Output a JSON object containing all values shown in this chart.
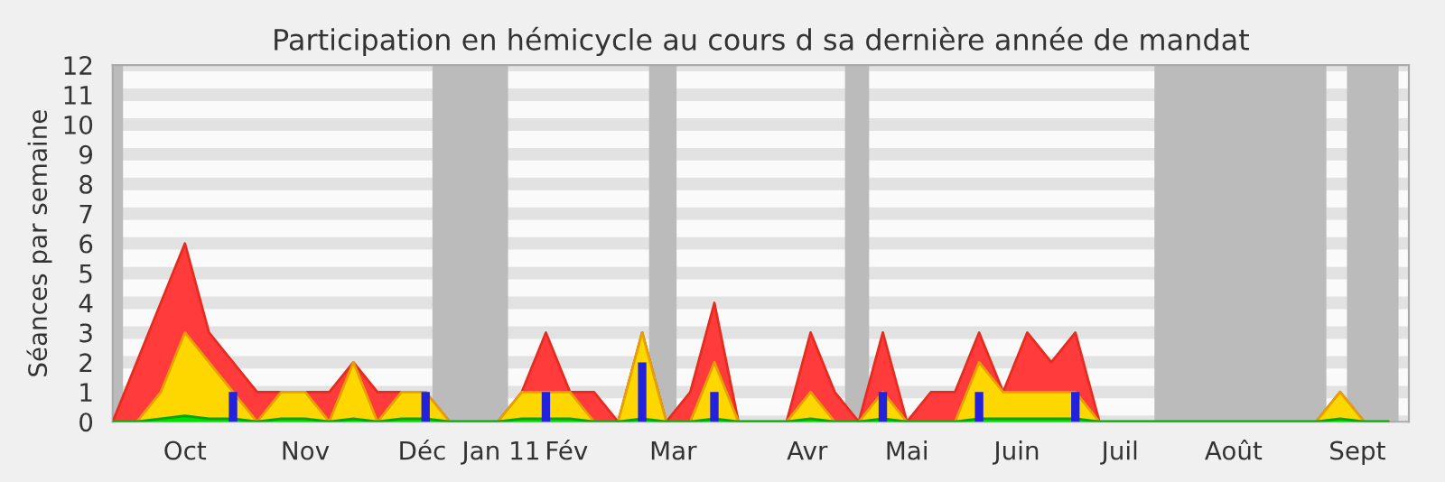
{
  "chart_data": {
    "type": "area",
    "title": "Participation en hémicycle au cours d sa dernière année de mandat",
    "ylabel": "Séances par semaine",
    "x": [
      "2010-09-24",
      "2010-10-01",
      "2010-10-08",
      "2010-10-15",
      "2010-10-22",
      "2010-10-29",
      "2010-11-05",
      "2010-11-12",
      "2010-11-19",
      "2010-11-26",
      "2010-12-03",
      "2010-12-10",
      "2010-12-17",
      "2010-12-24",
      "2010-12-31",
      "2011-01-07",
      "2011-01-14",
      "2011-01-21",
      "2011-01-28",
      "2011-02-04",
      "2011-02-11",
      "2011-02-18",
      "2011-02-25",
      "2011-03-04",
      "2011-03-11",
      "2011-03-18",
      "2011-03-25",
      "2011-04-01",
      "2011-04-08",
      "2011-04-15",
      "2011-04-22",
      "2011-04-29",
      "2011-05-06",
      "2011-05-13",
      "2011-05-20",
      "2011-05-27",
      "2011-06-03",
      "2011-06-10",
      "2011-06-17",
      "2011-06-24",
      "2011-07-01",
      "2011-07-08",
      "2011-07-15",
      "2011-07-22",
      "2011-07-29",
      "2011-08-05",
      "2011-08-12",
      "2011-08-19",
      "2011-08-26",
      "2011-09-02",
      "2011-09-09",
      "2011-09-16",
      "2011-09-23",
      "2011-09-30"
    ],
    "series": [
      {
        "color": "#ff3b3b",
        "values": [
          0,
          2,
          4,
          6,
          3,
          2,
          1,
          1,
          1,
          1,
          2,
          1,
          1,
          1,
          0,
          0,
          0,
          1,
          3,
          1,
          1,
          0,
          3,
          0,
          1,
          4,
          0,
          0,
          0,
          3,
          1,
          0,
          3,
          0,
          1,
          1,
          3,
          1,
          3,
          2,
          3,
          0,
          0,
          0,
          0,
          0,
          0,
          0,
          0,
          0,
          0,
          1,
          0,
          0
        ]
      },
      {
        "color": "#ffd700",
        "values": [
          0,
          0,
          1,
          3,
          2,
          1,
          0,
          1,
          1,
          0,
          2,
          0,
          1,
          1,
          0,
          0,
          0,
          1,
          1,
          1,
          0,
          0,
          3,
          0,
          0,
          2,
          0,
          0,
          0,
          1,
          0,
          0,
          1,
          0,
          0,
          0,
          2,
          1,
          1,
          1,
          1,
          0,
          0,
          0,
          0,
          0,
          0,
          0,
          0,
          0,
          0,
          1,
          0,
          0
        ]
      },
      {
        "color": "#00dd00",
        "values": [
          0,
          0,
          0.1,
          0.2,
          0.1,
          0.1,
          0,
          0.1,
          0.1,
          0,
          0.1,
          0,
          0.1,
          0.1,
          0,
          0,
          0,
          0.1,
          0.1,
          0.1,
          0,
          0,
          0.1,
          0,
          0,
          0.1,
          0,
          0,
          0,
          0.1,
          0,
          0,
          0.1,
          0,
          0,
          0,
          0.1,
          0.1,
          0.1,
          0.1,
          0.1,
          0,
          0,
          0,
          0,
          0,
          0,
          0,
          0,
          0,
          0,
          0.1,
          0,
          0
        ]
      },
      {
        "type": "bar",
        "color": "#2222dd",
        "x": [
          "2010-10-29",
          "2010-12-24",
          "2011-01-28",
          "2011-02-25",
          "2011-03-18",
          "2011-05-06",
          "2011-06-03",
          "2011-07-01"
        ],
        "values": [
          1,
          1,
          1,
          2,
          1,
          1,
          1,
          1
        ]
      }
    ],
    "bands": [
      {
        "axis": "x",
        "from": "2010-09-24",
        "to": "2010-09-27",
        "color": "#bbbbbb"
      },
      {
        "axis": "x",
        "from": "2010-12-26",
        "to": "2011-01-17",
        "color": "#bbbbbb"
      },
      {
        "axis": "x",
        "from": "2011-02-27",
        "to": "2011-03-07",
        "color": "#bbbbbb"
      },
      {
        "axis": "x",
        "from": "2011-04-25",
        "to": "2011-05-02",
        "color": "#bbbbbb"
      },
      {
        "axis": "x",
        "from": "2011-07-24",
        "to": "2011-09-12",
        "color": "#bbbbbb"
      },
      {
        "axis": "x",
        "from": "2011-09-18",
        "to": "2011-10-03",
        "color": "#bbbbbb"
      }
    ],
    "xlim": [
      "2010-09-24",
      "2011-10-06"
    ],
    "ylim": [
      0,
      12
    ],
    "xticks": [
      {
        "value": "2010-10-15",
        "label": "Oct"
      },
      {
        "value": "2010-11-19",
        "label": "Nov"
      },
      {
        "value": "2010-12-23",
        "label": "Déc"
      },
      {
        "value": "2011-01-15",
        "label": "Jan 11"
      },
      {
        "value": "2011-02-03",
        "label": "Fév"
      },
      {
        "value": "2011-03-06",
        "label": "Mar"
      },
      {
        "value": "2011-04-14",
        "label": "Avr"
      },
      {
        "value": "2011-05-13",
        "label": "Mai"
      },
      {
        "value": "2011-06-14",
        "label": "Juin"
      },
      {
        "value": "2011-07-14",
        "label": "Juil"
      },
      {
        "value": "2011-08-16",
        "label": "Août"
      },
      {
        "value": "2011-09-21",
        "label": "Sept"
      }
    ],
    "yticks": [
      0,
      1,
      2,
      3,
      4,
      5,
      6,
      7,
      8,
      9,
      10,
      11,
      12
    ],
    "grid": "y",
    "legend": false
  }
}
